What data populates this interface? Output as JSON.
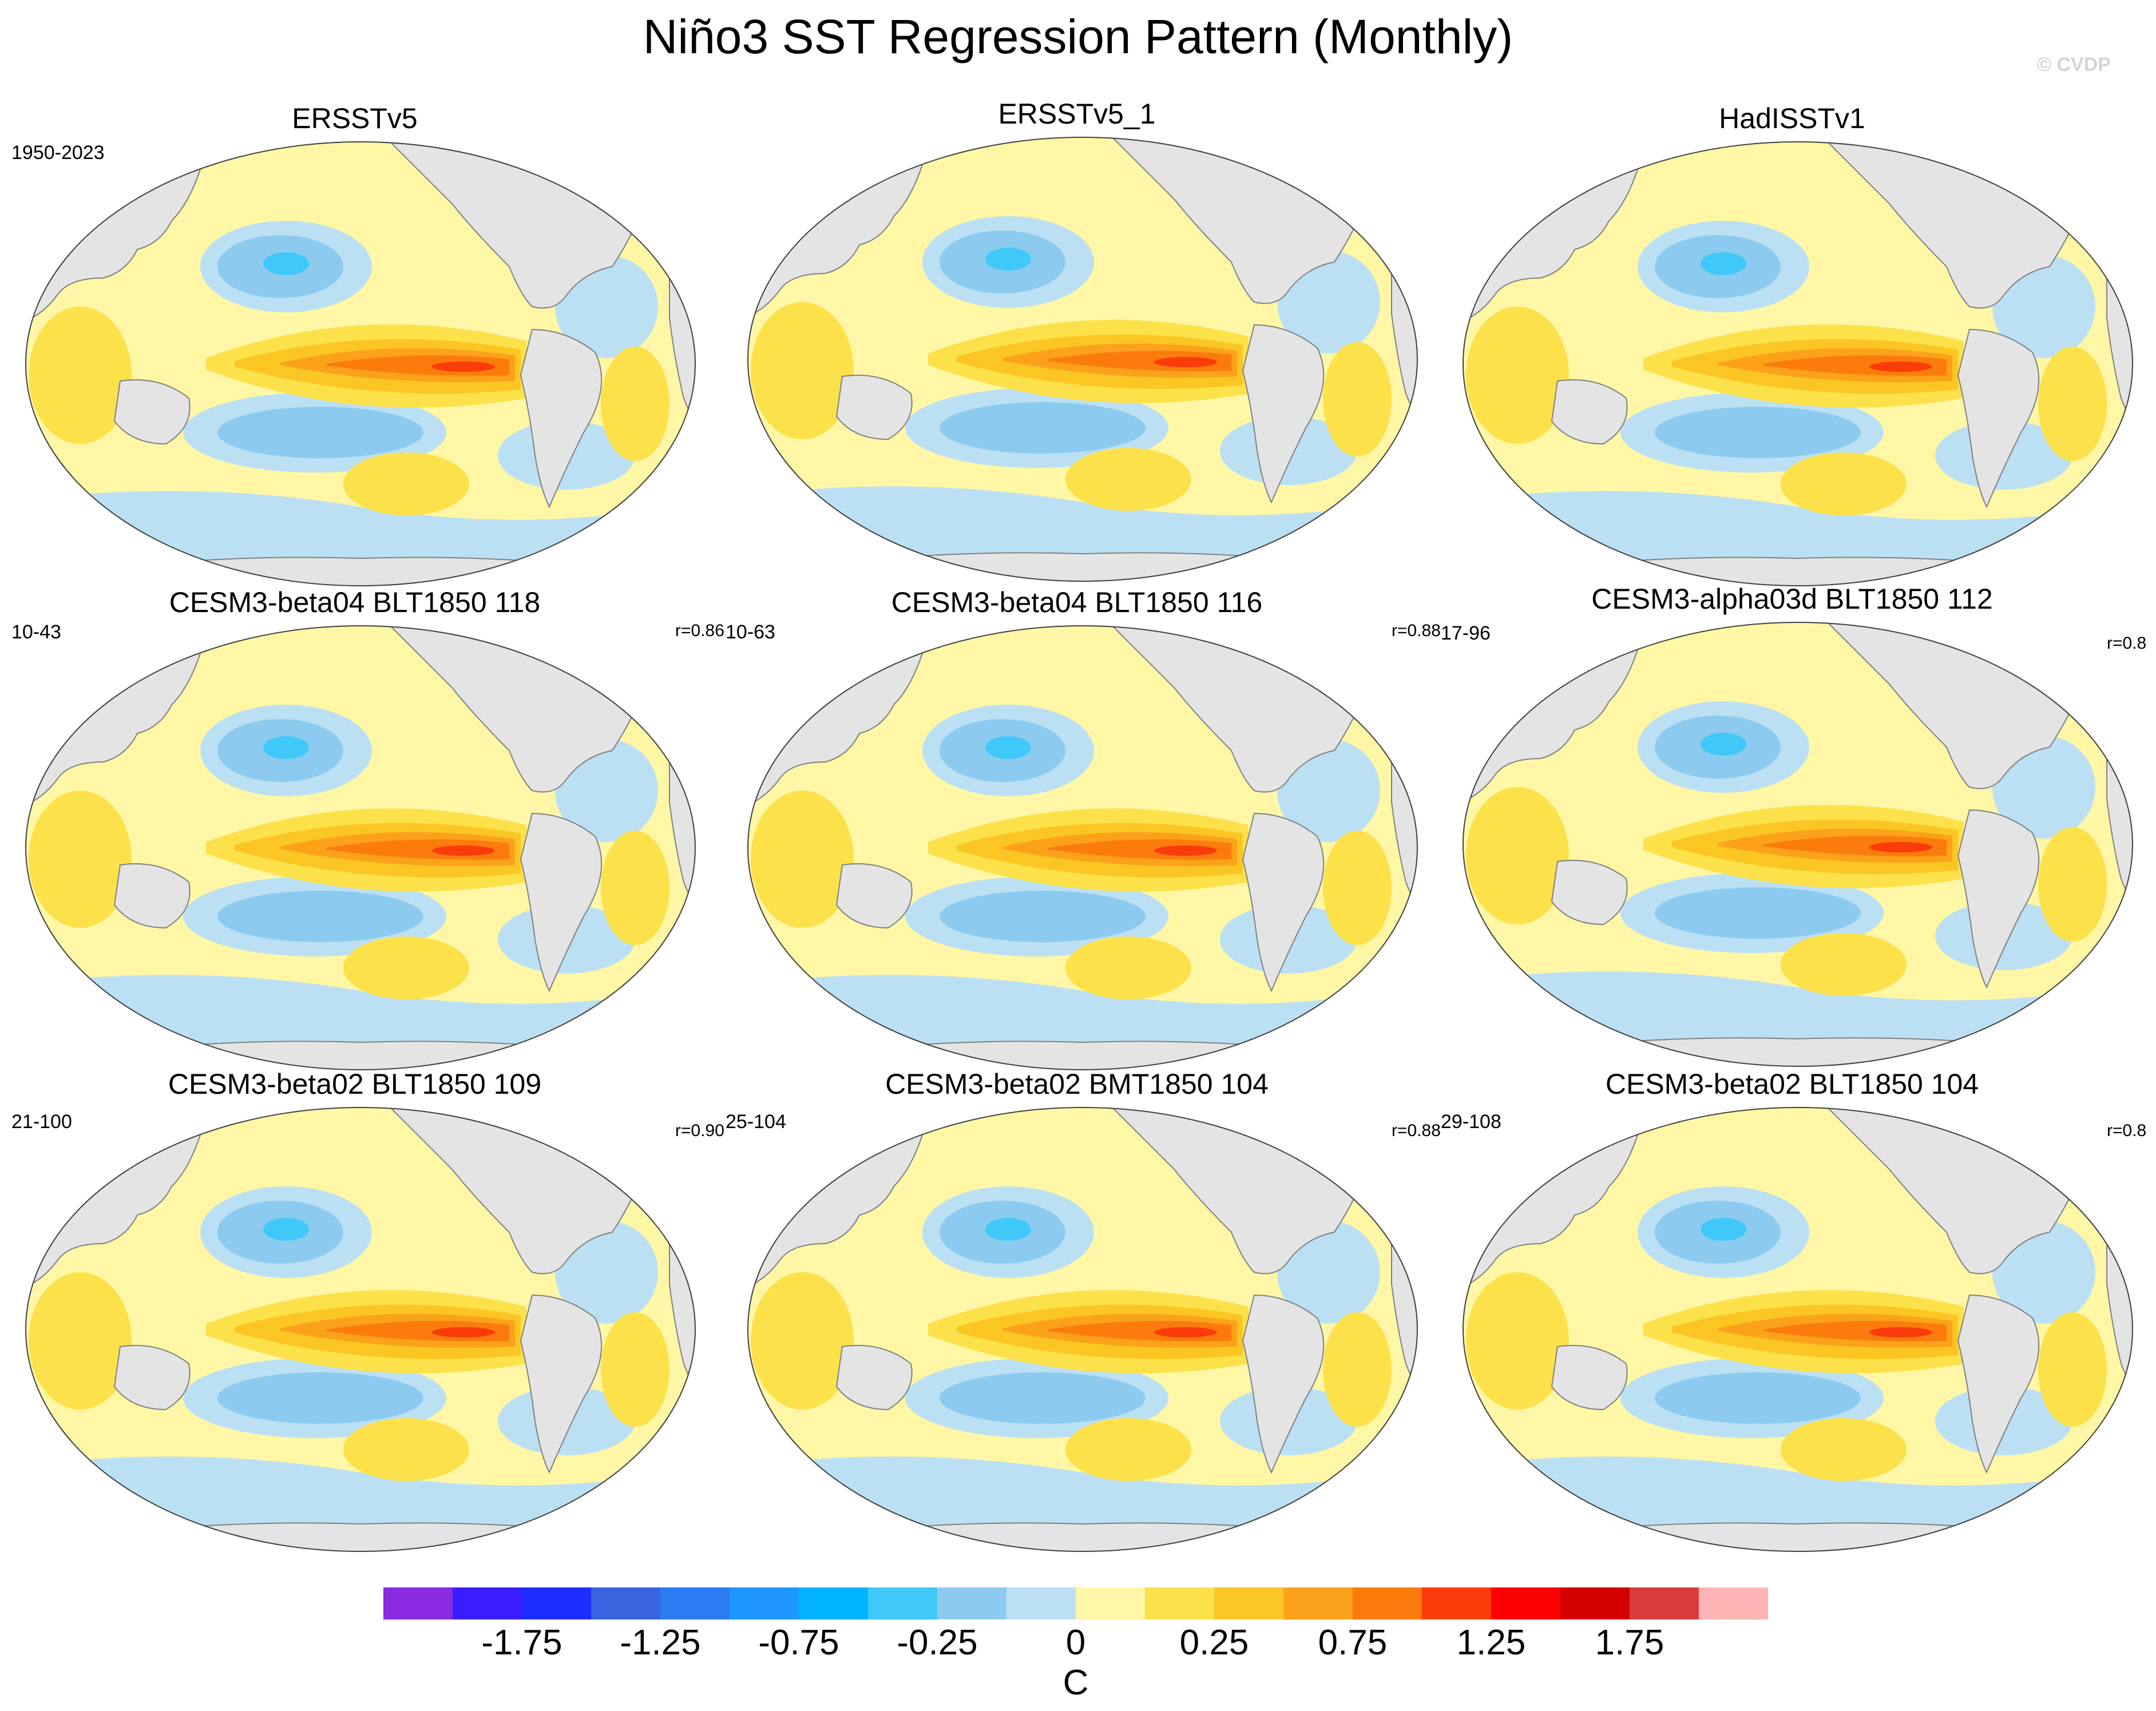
{
  "title": "Niño3 SST Regression Pattern (Monthly)",
  "watermark": "© CVDP",
  "panels": [
    {
      "title": "ERSSTv5",
      "period": "1950-2023",
      "corr": ""
    },
    {
      "title": "ERSSTv5_1",
      "period": "",
      "corr": ""
    },
    {
      "title": "HadISSTv1",
      "period": "",
      "corr": ""
    },
    {
      "title": "CESM3-beta04 BLT1850 118",
      "period": "10-43",
      "corr": "r=0.86"
    },
    {
      "title": "CESM3-beta04 BLT1850 116",
      "period": "10-63",
      "corr": "r=0.88"
    },
    {
      "title": "CESM3-alpha03d BLT1850 112",
      "period": "17-96",
      "corr": "r=0.8"
    },
    {
      "title": "CESM3-beta02 BLT1850 109",
      "period": "21-100",
      "corr": "r=0.90"
    },
    {
      "title": "CESM3-beta02 BMT1850 104",
      "period": "25-104",
      "corr": "r=0.88"
    },
    {
      "title": "CESM3-beta02 BLT1850 104",
      "period": "29-108",
      "corr": "r=0.8"
    }
  ],
  "colorbar": {
    "colors": [
      "#8a2be2",
      "#3a1cff",
      "#1e2dff",
      "#3a63e0",
      "#2a7cf0",
      "#1e96ff",
      "#00b4ff",
      "#40c8f8",
      "#8ccbef",
      "#bbe0f4",
      "#fff7a6",
      "#fce14a",
      "#fbc623",
      "#fba21a",
      "#fb7c0d",
      "#fa3c0a",
      "#fb0000",
      "#d40000",
      "#d93c3c",
      "#fdb4b4"
    ],
    "tick_labels": [
      "-1.75",
      "-1.25",
      "-0.75",
      "-0.25",
      "0",
      "0.25",
      "0.75",
      "1.25",
      "1.75"
    ],
    "unit": "C"
  },
  "colors": {
    "land": "#e4e4e4",
    "land_edge": "#808080"
  }
}
